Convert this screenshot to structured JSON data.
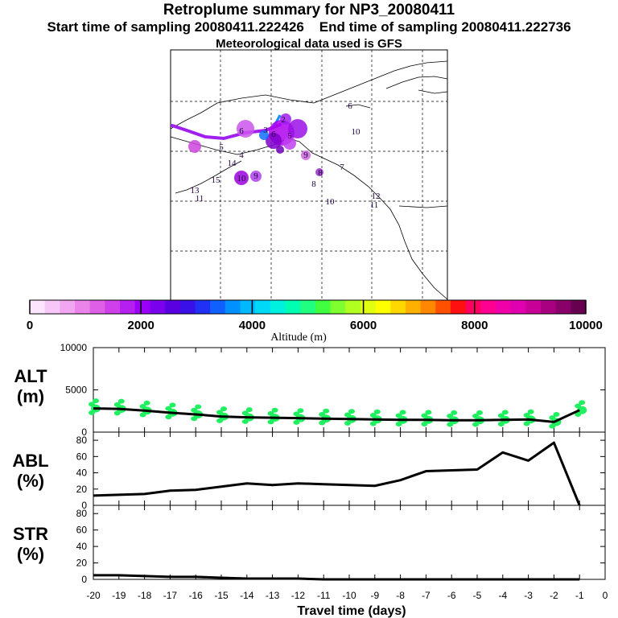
{
  "header": {
    "title": "Retroplume summary for NP3_20080411",
    "start_label": "Start time of sampling 20080411.222426",
    "end_label": "End time of sampling 20080411.222736",
    "met_label": "Meteorological data used is GFS"
  },
  "colorbar": {
    "ticks": [
      "0",
      "2000",
      "4000",
      "6000",
      "8000",
      "10000"
    ],
    "label": "Altitude (m)",
    "colors": [
      "#fde6fd",
      "#f7c8f7",
      "#f2a6f2",
      "#ea84ea",
      "#df5fe6",
      "#cf3fea",
      "#b51ff0",
      "#9a00f5",
      "#7a00ee",
      "#5a00e0",
      "#3a10e8",
      "#2030f5",
      "#1060ff",
      "#0090ff",
      "#00b8ff",
      "#00d8f8",
      "#00f0e0",
      "#00ffb0",
      "#20ff80",
      "#40ff40",
      "#80ff30",
      "#b0ff20",
      "#e0ff10",
      "#ffff00",
      "#ffd800",
      "#ffb000",
      "#ff8800",
      "#ff5000",
      "#ff1010",
      "#ff0060",
      "#ff0090",
      "#f000a8",
      "#e000b0",
      "#c80098",
      "#a80080",
      "#880068",
      "#680050"
    ],
    "major_colors": [
      "#ff0000",
      "#ff10a0",
      "#ff20b0"
    ]
  },
  "map_labels": [
    {
      "text": "3"
    },
    {
      "text": "5"
    },
    {
      "text": "2"
    },
    {
      "text": "6"
    },
    {
      "text": "5"
    },
    {
      "text": "4"
    },
    {
      "text": "6"
    },
    {
      "text": "9"
    },
    {
      "text": "14"
    },
    {
      "text": "15"
    },
    {
      "text": "10"
    },
    {
      "text": "9"
    },
    {
      "text": "8"
    },
    {
      "text": "7"
    },
    {
      "text": "8"
    },
    {
      "text": "13"
    },
    {
      "text": "11"
    },
    {
      "text": "10"
    },
    {
      "text": "12"
    },
    {
      "text": "11"
    },
    {
      "text": "10"
    },
    {
      "text": "6"
    }
  ],
  "chart_data": [
    {
      "type": "line",
      "panel": "altitude",
      "ylabel_line1": "ALT",
      "ylabel_line2": "(m)",
      "ylim": [
        0,
        10000
      ],
      "yticks": [
        "10000",
        "5000",
        "0"
      ],
      "x": [
        -20,
        -19,
        -18,
        -17,
        -16,
        -15,
        -14,
        -13,
        -12,
        -11,
        -10,
        -9,
        -8,
        -7,
        -6,
        -5,
        -4,
        -3,
        -2,
        -1
      ],
      "values": [
        2800,
        2750,
        2550,
        2300,
        2100,
        1850,
        1750,
        1700,
        1650,
        1600,
        1550,
        1500,
        1450,
        1450,
        1400,
        1400,
        1450,
        1500,
        1200,
        2600
      ],
      "points_color": "#20f060",
      "line_color": "#000000"
    },
    {
      "type": "line",
      "panel": "abl",
      "ylabel_line1": "ABL",
      "ylabel_line2": "(%)",
      "ylim": [
        0,
        90
      ],
      "yticks": [
        "80",
        "60",
        "40",
        "20",
        "0"
      ],
      "x": [
        -20,
        -19,
        -18,
        -17,
        -16,
        -15,
        -14,
        -13,
        -12,
        -11,
        -10,
        -9,
        -8,
        -7,
        -6,
        -5,
        -4,
        -3,
        -2,
        -1
      ],
      "values": [
        12,
        13,
        14,
        18,
        19,
        23,
        27,
        25,
        27,
        26,
        25,
        24,
        31,
        42,
        43,
        44,
        65,
        55,
        77,
        0
      ]
    },
    {
      "type": "line",
      "panel": "str",
      "ylabel_line1": "STR",
      "ylabel_line2": "(%)",
      "ylim": [
        0,
        90
      ],
      "yticks": [
        "80",
        "60",
        "40",
        "20",
        "0"
      ],
      "x": [
        -20,
        -19,
        -18,
        -17,
        -16,
        -15,
        -14,
        -13,
        -12,
        -11,
        -10,
        -9,
        -8,
        -7,
        -6,
        -5,
        -4,
        -3,
        -2,
        -1
      ],
      "values": [
        5,
        5,
        4,
        3,
        3,
        2,
        1,
        1,
        1,
        0,
        0,
        0,
        0,
        0,
        0,
        0,
        0,
        0,
        0,
        0
      ]
    }
  ],
  "xaxis": {
    "ticks": [
      "-20",
      "-19",
      "-18",
      "-17",
      "-16",
      "-15",
      "-14",
      "-13",
      "-12",
      "-11",
      "-10",
      "-9",
      "-8",
      "-7",
      "-6",
      "-5",
      "-4",
      "-3",
      "-2",
      "-1",
      "0"
    ],
    "label": "Travel time (days)"
  }
}
